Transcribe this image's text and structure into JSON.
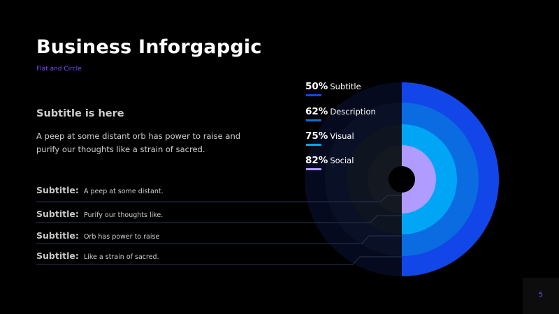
{
  "title": "Business Inforgapgic",
  "kicker": "Flat and Circle",
  "subheading": "Subtitle is here",
  "paragraph": "A peep at some distant orb has power to raise and purify our thoughts like a strain of sacred.",
  "items": [
    {
      "label": "Subtitle:",
      "text": "A peep at some distant."
    },
    {
      "label": "Subtitle:",
      "text": "Purify our thoughts like."
    },
    {
      "label": "Subtitle:",
      "text": "Orb has power to raise"
    },
    {
      "label": "Subtitle:",
      "text": "Like a strain of sacred."
    }
  ],
  "stats": [
    {
      "value": "50%",
      "name": "Subtitle",
      "color": "#1246e8"
    },
    {
      "value": "62%",
      "name": "Description",
      "color": "#0a6ce0"
    },
    {
      "value": "75%",
      "name": "Visual",
      "color": "#00a6f5"
    },
    {
      "value": "82%",
      "name": "Social",
      "color": "#b09cff"
    }
  ],
  "page_number": "5"
}
